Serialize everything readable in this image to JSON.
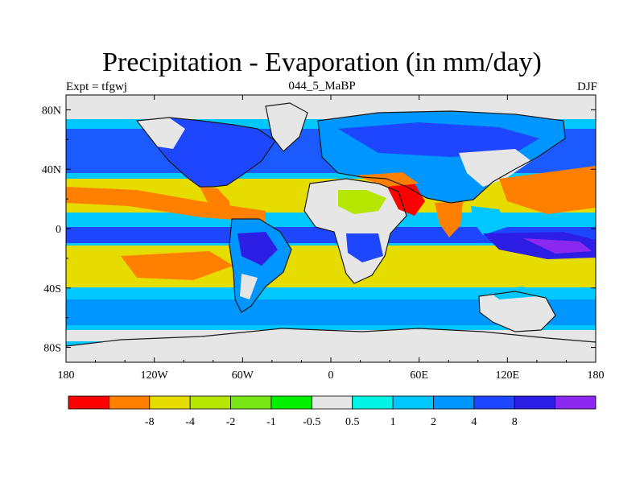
{
  "title": "Precipitation - Evaporation (in mm/day)",
  "left_string": "Expt = tfgwj",
  "center_string": "044_5_MaBP",
  "right_string": "DJF",
  "map": {
    "projection": "cylindrical-equidistant",
    "lon_range": [
      -180,
      180
    ],
    "lat_range": [
      -90,
      90
    ],
    "x_ticks": [
      {
        "lon": -180,
        "label": "180"
      },
      {
        "lon": -120,
        "label": "120W"
      },
      {
        "lon": -60,
        "label": "60W"
      },
      {
        "lon": 0,
        "label": "0"
      },
      {
        "lon": 60,
        "label": "60E"
      },
      {
        "lon": 120,
        "label": "120E"
      },
      {
        "lon": 180,
        "label": "180"
      }
    ],
    "y_ticks": [
      {
        "lat": 80,
        "label": "80N"
      },
      {
        "lat": 40,
        "label": "40N"
      },
      {
        "lat": 0,
        "label": "0"
      },
      {
        "lat": -40,
        "label": "40S"
      },
      {
        "lat": -80,
        "label": "80S"
      }
    ],
    "frame_color": "#000000",
    "coast_color": "#1a1a1a"
  },
  "colorbar": {
    "colors": [
      "#ff0000",
      "#ff8000",
      "#e6dc00",
      "#b4e600",
      "#78e614",
      "#00f000",
      "#e6e6e6",
      "#00f5e6",
      "#00c8ff",
      "#0096ff",
      "#1e46ff",
      "#2d1ee6",
      "#8c28f0"
    ],
    "labels": [
      "-8",
      "-4",
      "-2",
      "-1",
      "-0.5",
      "0.5",
      "1",
      "2",
      "4",
      "8"
    ]
  }
}
